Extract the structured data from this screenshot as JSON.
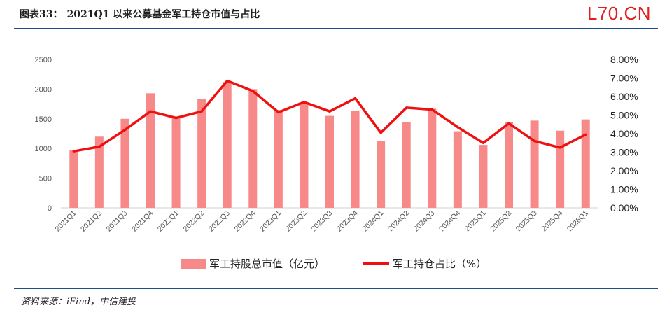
{
  "header": {
    "label": "图表33：",
    "title": "2021Q1 以来公募基金军工持仓市值与占比",
    "brand": "L70.CN"
  },
  "source": "资料来源：iFind，中信建投",
  "colors": {
    "bar": "#f78989",
    "line": "#ee1111",
    "rule": "#1f4e8c",
    "brand": "#e02020"
  },
  "chart_data": {
    "type": "bar",
    "categories": [
      "2021Q1",
      "2021Q2",
      "2021Q3",
      "2021Q4",
      "2022Q1",
      "2022Q2",
      "2022Q3",
      "2022Q4",
      "2023Q1",
      "2023Q2",
      "2023Q3",
      "2023Q4",
      "2024Q1",
      "2024Q2",
      "2024Q3",
      "2024Q4",
      "2025Q1",
      "2025Q2",
      "2025Q3",
      "2025Q4",
      "2026Q1"
    ],
    "series": [
      {
        "name": "军工持股总市值（亿元）",
        "type": "bar",
        "axis": "left",
        "values": [
          970,
          1200,
          1500,
          1930,
          1530,
          1840,
          2120,
          2000,
          1650,
          1780,
          1550,
          1640,
          1120,
          1450,
          1670,
          1290,
          1060,
          1450,
          1470,
          1300,
          1490
        ]
      },
      {
        "name": "军工持仓占比（%）",
        "type": "line",
        "axis": "right",
        "values": [
          3.05,
          3.3,
          4.2,
          5.2,
          4.85,
          5.2,
          6.85,
          6.3,
          5.15,
          5.7,
          5.2,
          5.9,
          4.05,
          5.4,
          5.3,
          4.35,
          3.5,
          4.55,
          3.6,
          3.25,
          3.95
        ]
      }
    ],
    "left_axis": {
      "ylim": [
        0,
        2500
      ],
      "ticks": [
        "0",
        "500",
        "1000",
        "1500",
        "2000",
        "2500"
      ]
    },
    "right_axis": {
      "ylim": [
        0,
        8
      ],
      "ticks": [
        "0.00%",
        "1.00%",
        "2.00%",
        "3.00%",
        "4.00%",
        "5.00%",
        "6.00%",
        "7.00%",
        "8.00%"
      ]
    },
    "legend": "bottom",
    "grid": false
  }
}
